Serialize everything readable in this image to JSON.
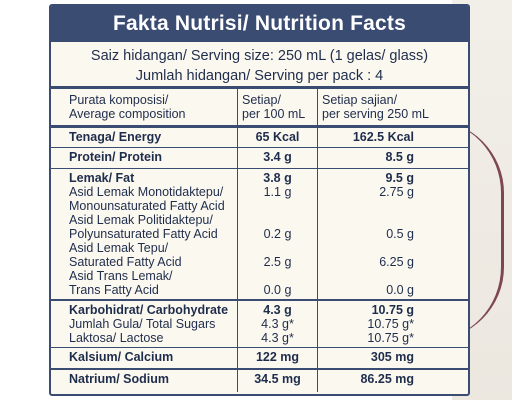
{
  "title": "Fakta Nutrisi/ Nutrition Facts",
  "serving_size": "Saiz hidangan/ Serving size: 250 mL (1 gelas/ glass)",
  "servings_per_pack": "Jumlah hidangan/ Serving per pack : 4",
  "header": {
    "col1_line1": "Purata komposisi/",
    "col1_line2": "Average composition",
    "col2_line1": "Setiap/",
    "col2_line2": "per 100 mL",
    "col3_line1": "Setiap sajian/",
    "col3_line2": "per serving 250 mL"
  },
  "energy": {
    "label": "Tenaga/ Energy",
    "per100": "65 Kcal",
    "serving": "162.5 Kcal"
  },
  "protein": {
    "label": "Protein/ Protein",
    "per100": "3.4 g",
    "serving": "8.5 g"
  },
  "fat": {
    "label": "Lemak/ Fat",
    "per100": "3.8 g",
    "serving": "9.5 g",
    "sub": [
      {
        "line1": "Asid Lemak Monotidaktepu/",
        "line2": "Monounsaturated Fatty Acid",
        "per100": "1.1 g",
        "serving": "2.75 g"
      },
      {
        "line1": "Asid Lemak Politidaktepu/",
        "line2": "Polyunsaturated Fatty Acid",
        "per100": "0.2 g",
        "serving": "0.5 g"
      },
      {
        "line1": "Asid Lemak Tepu/",
        "line2": "Saturated Fatty Acid",
        "per100": "2.5 g",
        "serving": "6.25 g"
      },
      {
        "line1": "Asid Trans Lemak/",
        "line2": "Trans Fatty Acid",
        "per100": "0.0 g",
        "serving": "0.0 g"
      }
    ]
  },
  "carbohydrate": {
    "label": "Karbohidrat/ Carbohydrate",
    "per100": "4.3 g",
    "serving": "10.75 g",
    "sugars_label": "Jumlah Gula/ Total Sugars",
    "sugars_per100": "4.3 g*",
    "sugars_serving": "10.75 g*",
    "lactose_label": "Laktosa/ Lactose",
    "lactose_per100": "4.3 g*",
    "lactose_serving": "10.75 g*"
  },
  "calcium": {
    "label": "Kalsium/ Calcium",
    "per100": "122 mg",
    "serving": "305 mg"
  },
  "sodium": {
    "label": "Natrium/ Sodium",
    "per100": "34.5 mg",
    "serving": "86.25 mg"
  },
  "colors": {
    "navy": "#3b4c72",
    "panel": "#fbf8ef",
    "accent": "#6b2a3a"
  }
}
